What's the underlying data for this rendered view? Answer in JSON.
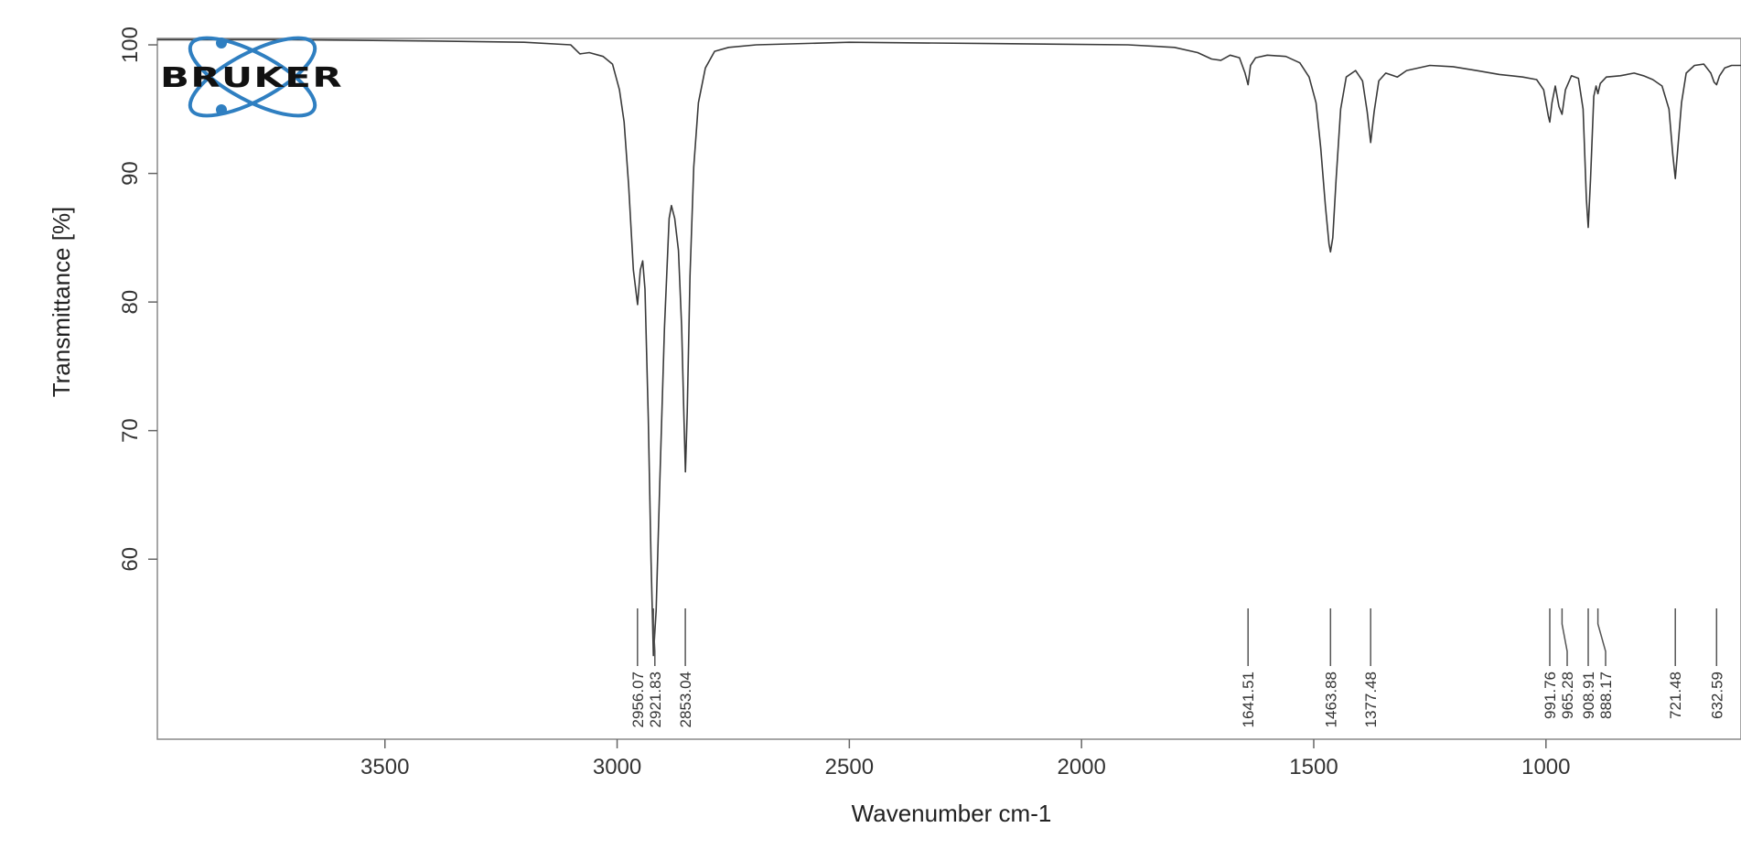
{
  "logo": {
    "text": "BRUKER",
    "orbit_color": "#2f7fc1"
  },
  "colors": {
    "spectrum": "#3a3a3a",
    "frame": "#888888",
    "peak_marker": "#555555"
  },
  "chart_data": {
    "type": "line",
    "xlabel": "Wavenumber cm-1",
    "ylabel": "Transmittance [%]",
    "x_reversed": true,
    "xlim": [
      3990,
      580
    ],
    "ylim": [
      46,
      100.5
    ],
    "x_ticks": [
      3500,
      3000,
      2500,
      2000,
      1500,
      1000
    ],
    "x_tick_labels": [
      "3500",
      "3000",
      "2500",
      "2000",
      "1500",
      "1000"
    ],
    "y_ticks": [
      100,
      90,
      80,
      70,
      60
    ],
    "y_tick_labels": [
      "100",
      "90",
      "80",
      "70",
      "60"
    ],
    "grid": false,
    "legend": "none",
    "peaks": [
      {
        "x": 2956.07,
        "label": "2956.07"
      },
      {
        "x": 2921.83,
        "label": "2921.83"
      },
      {
        "x": 2853.04,
        "label": "2853.04"
      },
      {
        "x": 1641.51,
        "label": "1641.51"
      },
      {
        "x": 1463.88,
        "label": "1463.88"
      },
      {
        "x": 1377.48,
        "label": "1377.48"
      },
      {
        "x": 991.76,
        "label": "991.76"
      },
      {
        "x": 965.28,
        "label": "965.28"
      },
      {
        "x": 908.91,
        "label": "908.91"
      },
      {
        "x": 888.17,
        "label": "888.17"
      },
      {
        "x": 721.48,
        "label": "721.48"
      },
      {
        "x": 632.59,
        "label": "632.59"
      }
    ],
    "series": [
      {
        "points": [
          [
            3990,
            100.4
          ],
          [
            3700,
            100.4
          ],
          [
            3400,
            100.3
          ],
          [
            3200,
            100.2
          ],
          [
            3100,
            100.0
          ],
          [
            3080,
            99.3
          ],
          [
            3060,
            99.4
          ],
          [
            3030,
            99.1
          ],
          [
            3010,
            98.5
          ],
          [
            2995,
            96.5
          ],
          [
            2985,
            94.0
          ],
          [
            2975,
            89.0
          ],
          [
            2965,
            82.5
          ],
          [
            2956,
            79.8
          ],
          [
            2950,
            82.5
          ],
          [
            2945,
            83.2
          ],
          [
            2940,
            81.0
          ],
          [
            2933,
            71.0
          ],
          [
            2927,
            60.0
          ],
          [
            2921.8,
            52.5
          ],
          [
            2916,
            56.0
          ],
          [
            2908,
            66.0
          ],
          [
            2898,
            78.0
          ],
          [
            2888,
            86.5
          ],
          [
            2883,
            87.5
          ],
          [
            2876,
            86.5
          ],
          [
            2868,
            84.0
          ],
          [
            2861,
            78.0
          ],
          [
            2856,
            71.0
          ],
          [
            2853,
            66.8
          ],
          [
            2849,
            71.5
          ],
          [
            2843,
            82.0
          ],
          [
            2835,
            90.5
          ],
          [
            2825,
            95.5
          ],
          [
            2810,
            98.2
          ],
          [
            2790,
            99.5
          ],
          [
            2760,
            99.8
          ],
          [
            2700,
            100.0
          ],
          [
            2500,
            100.2
          ],
          [
            2200,
            100.1
          ],
          [
            1900,
            100.0
          ],
          [
            1800,
            99.8
          ],
          [
            1750,
            99.4
          ],
          [
            1720,
            98.9
          ],
          [
            1700,
            98.8
          ],
          [
            1680,
            99.2
          ],
          [
            1660,
            99.0
          ],
          [
            1648,
            97.8
          ],
          [
            1641.5,
            96.9
          ],
          [
            1636,
            98.4
          ],
          [
            1625,
            99.0
          ],
          [
            1600,
            99.2
          ],
          [
            1560,
            99.1
          ],
          [
            1530,
            98.6
          ],
          [
            1510,
            97.5
          ],
          [
            1495,
            95.5
          ],
          [
            1485,
            92.0
          ],
          [
            1475,
            87.5
          ],
          [
            1467,
            84.5
          ],
          [
            1463.9,
            83.9
          ],
          [
            1459,
            85.0
          ],
          [
            1452,
            89.5
          ],
          [
            1442,
            95.0
          ],
          [
            1430,
            97.5
          ],
          [
            1410,
            98.0
          ],
          [
            1395,
            97.2
          ],
          [
            1385,
            94.8
          ],
          [
            1377.5,
            92.4
          ],
          [
            1370,
            94.8
          ],
          [
            1360,
            97.2
          ],
          [
            1345,
            97.8
          ],
          [
            1320,
            97.5
          ],
          [
            1300,
            98.0
          ],
          [
            1250,
            98.4
          ],
          [
            1200,
            98.3
          ],
          [
            1150,
            98.0
          ],
          [
            1100,
            97.7
          ],
          [
            1050,
            97.5
          ],
          [
            1020,
            97.3
          ],
          [
            1005,
            96.5
          ],
          [
            995,
            94.5
          ],
          [
            991.8,
            94.0
          ],
          [
            987,
            95.5
          ],
          [
            980,
            96.8
          ],
          [
            972,
            95.2
          ],
          [
            965.3,
            94.6
          ],
          [
            958,
            96.5
          ],
          [
            945,
            97.6
          ],
          [
            930,
            97.4
          ],
          [
            920,
            95.0
          ],
          [
            913,
            88.0
          ],
          [
            908.9,
            85.8
          ],
          [
            904,
            89.5
          ],
          [
            897,
            96.0
          ],
          [
            892,
            96.8
          ],
          [
            888.2,
            96.2
          ],
          [
            883,
            97.0
          ],
          [
            870,
            97.5
          ],
          [
            840,
            97.6
          ],
          [
            810,
            97.8
          ],
          [
            790,
            97.6
          ],
          [
            770,
            97.3
          ],
          [
            750,
            96.8
          ],
          [
            735,
            95.0
          ],
          [
            727,
            91.5
          ],
          [
            721.5,
            89.6
          ],
          [
            716,
            92.0
          ],
          [
            708,
            95.5
          ],
          [
            698,
            97.8
          ],
          [
            680,
            98.4
          ],
          [
            660,
            98.5
          ],
          [
            645,
            97.8
          ],
          [
            638,
            97.1
          ],
          [
            632.6,
            96.9
          ],
          [
            626,
            97.6
          ],
          [
            615,
            98.2
          ],
          [
            600,
            98.4
          ],
          [
            580,
            98.4
          ]
        ]
      }
    ]
  }
}
